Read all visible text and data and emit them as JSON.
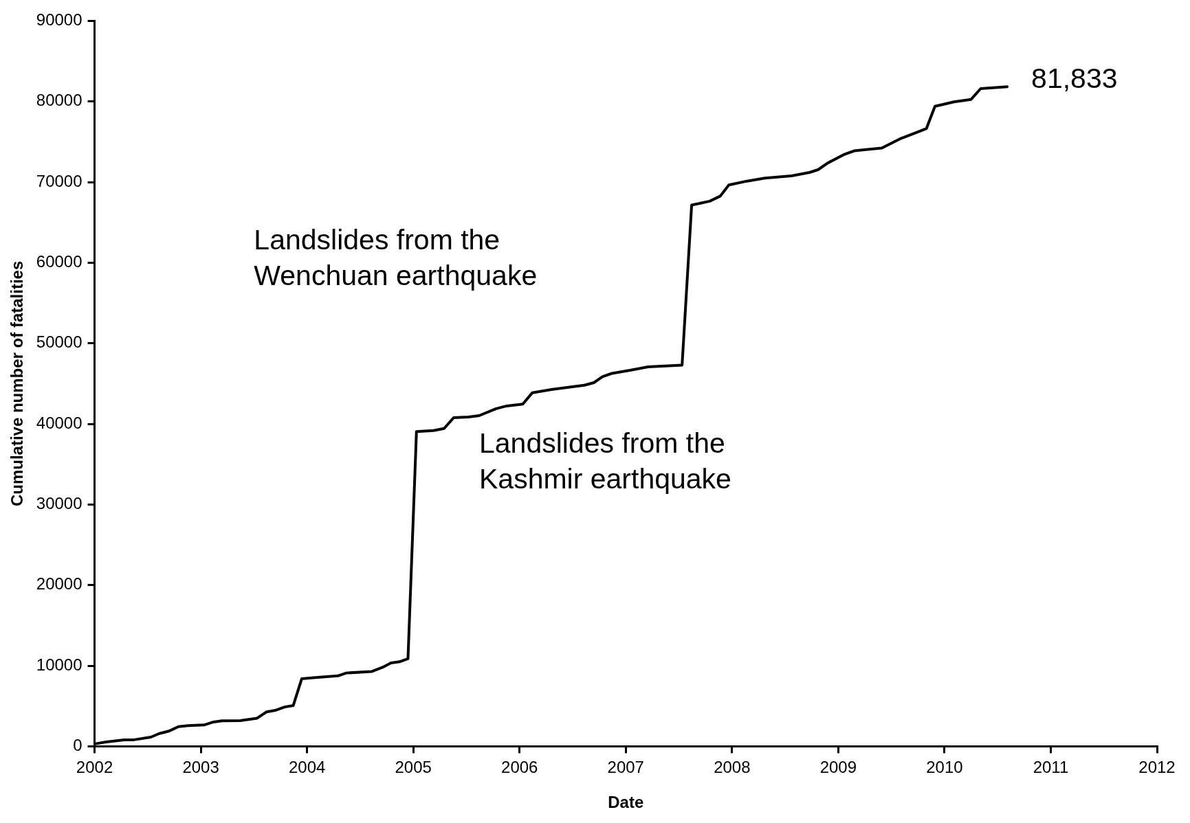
{
  "chart_data": {
    "type": "line",
    "xlabel": "Date",
    "ylabel": "Cumulative number of fatalities",
    "x": [
      2002.0,
      2002.11,
      2002.28,
      2002.37,
      2002.53,
      2002.61,
      2002.7,
      2002.79,
      2002.88,
      2003.03,
      2003.12,
      2003.2,
      2003.37,
      2003.53,
      2003.62,
      2003.7,
      2003.79,
      2003.87,
      2003.95,
      2004.08,
      2004.29,
      2004.37,
      2004.61,
      2004.71,
      2004.79,
      2004.87,
      2004.95,
      2005.03,
      2005.19,
      2005.29,
      2005.38,
      2005.52,
      2005.62,
      2005.78,
      2005.88,
      2006.03,
      2006.12,
      2006.3,
      2006.46,
      2006.61,
      2006.7,
      2006.78,
      2006.87,
      2007.04,
      2007.21,
      2007.53,
      2007.62,
      2007.79,
      2007.89,
      2007.97,
      2008.14,
      2008.31,
      2008.56,
      2008.73,
      2008.81,
      2008.9,
      2009.06,
      2009.15,
      2009.41,
      2009.58,
      2009.74,
      2009.83,
      2009.91,
      2010.09,
      2010.25,
      2010.34,
      2010.59
    ],
    "series": [
      {
        "color": "#000000",
        "values": [
          300,
          540,
          810,
          810,
          1140,
          1590,
          1890,
          2440,
          2560,
          2650,
          3020,
          3160,
          3190,
          3490,
          4280,
          4460,
          4880,
          5060,
          8380,
          8530,
          8740,
          9100,
          9290,
          9800,
          10340,
          10490,
          10860,
          39050,
          39170,
          39430,
          40770,
          40860,
          41030,
          41890,
          42230,
          42450,
          43860,
          44260,
          44550,
          44800,
          45120,
          45850,
          46270,
          46650,
          47080,
          47300,
          67150,
          67630,
          68270,
          69650,
          70120,
          70500,
          70770,
          71200,
          71540,
          72360,
          73450,
          73880,
          74230,
          75360,
          76180,
          76650,
          79400,
          79960,
          80250,
          81600,
          81833
        ]
      }
    ],
    "xlim": [
      2002,
      2012
    ],
    "xticks": [
      2002,
      2003,
      2004,
      2005,
      2006,
      2007,
      2008,
      2009,
      2010,
      2011,
      2012
    ],
    "ylim": [
      0,
      90000
    ],
    "yticks": [
      0,
      10000,
      20000,
      30000,
      40000,
      50000,
      60000,
      70000,
      80000,
      90000
    ],
    "grid": false,
    "legend": false,
    "marker": "none",
    "line_style": "solid",
    "annotations": [
      "Landslides from the\nWenchuan earthquake",
      "Landslides from the\nKashmir earthquake",
      {
        "text": "81,833",
        "x": 2010.59,
        "y": 81833
      }
    ]
  }
}
